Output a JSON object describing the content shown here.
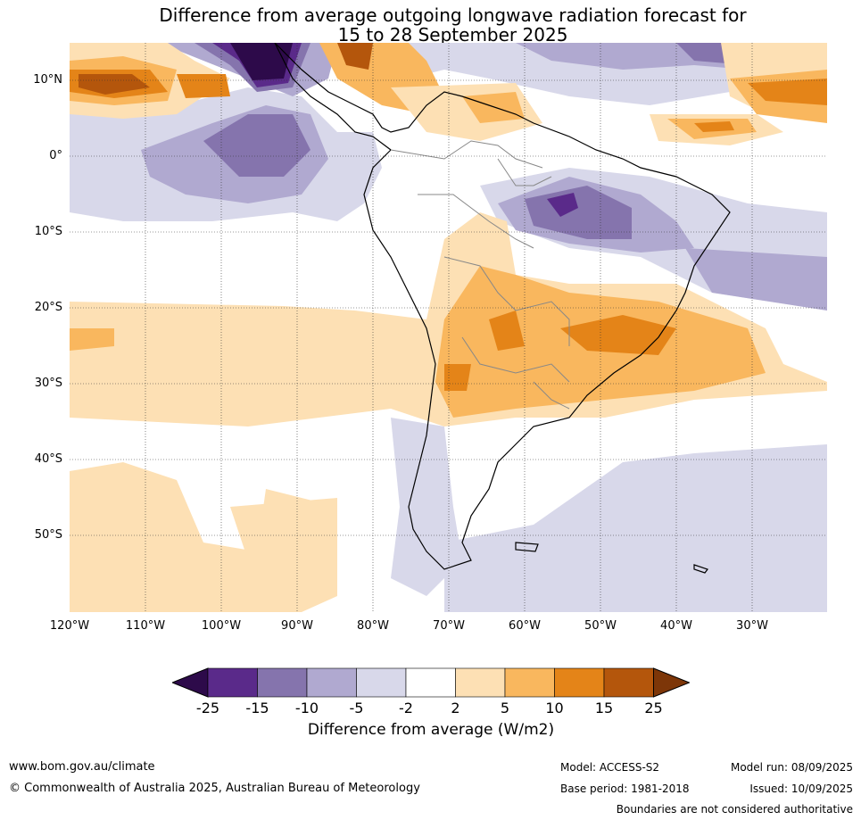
{
  "title_line1": "Difference from average outgoing longwave radiation forecast for",
  "title_line2": "15 to 28 September 2025",
  "lat_labels": [
    "10°N",
    "0°",
    "10°S",
    "20°S",
    "30°S",
    "40°S",
    "50°S"
  ],
  "lon_labels": [
    "120°W",
    "110°W",
    "100°W",
    "90°W",
    "80°W",
    "70°W",
    "60°W",
    "50°W",
    "40°W",
    "30°W"
  ],
  "colorbar": {
    "ticks": [
      "-25",
      "-15",
      "-10",
      "-5",
      "-2",
      "2",
      "5",
      "10",
      "15",
      "25"
    ],
    "colors": [
      "#2d0a4a",
      "#5a2a8a",
      "#8574ad",
      "#b0a9d0",
      "#d8d8ea",
      "#ffffff",
      "#fde0b4",
      "#f9b75e",
      "#e48418",
      "#b4560c",
      "#7d3608"
    ],
    "label": "Difference from average (W/m2)"
  },
  "footer": {
    "url": "www.bom.gov.au/climate",
    "copyright": "© Commonwealth of Australia 2025, Australian Bureau of Meteorology",
    "model": "Model: ACCESS-S2",
    "base_period": "Base period: 1981-2018",
    "model_run": "Model run: 08/09/2025",
    "issued": "Issued: 10/09/2025",
    "disclaimer": "Boundaries are not considered authoritative"
  }
}
